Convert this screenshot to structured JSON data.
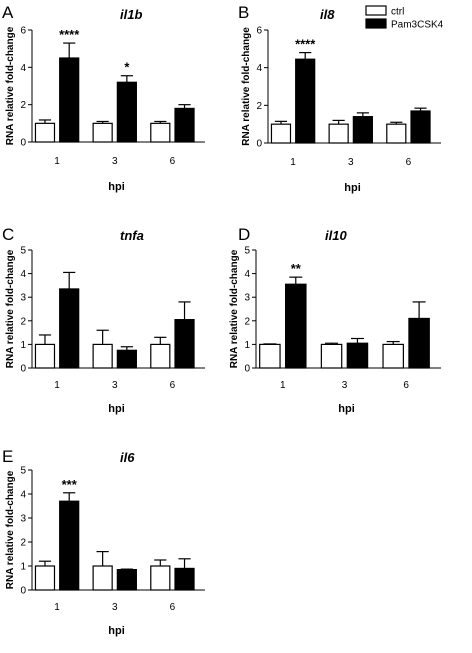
{
  "legend": {
    "entries": [
      {
        "label": "ctrl",
        "color": "#ffffff"
      },
      {
        "label": "Pam3CSK4",
        "color": "#000000"
      }
    ]
  },
  "chart_data": [
    {
      "type": "bar",
      "panel": "A",
      "title": "il1b",
      "xlabel": "hpi",
      "ylabel": "RNA relative fold-change",
      "categories": [
        "1",
        "3",
        "6"
      ],
      "ylim": [
        0,
        6
      ],
      "yticks": [
        0,
        2,
        4,
        6
      ],
      "series": [
        {
          "name": "ctrl",
          "values": [
            1.0,
            1.0,
            1.0
          ],
          "errors": [
            0.18,
            0.1,
            0.1
          ]
        },
        {
          "name": "Pam3CSK4",
          "values": [
            4.5,
            3.2,
            1.8
          ],
          "errors": [
            0.8,
            0.35,
            0.2
          ]
        }
      ],
      "annotations": [
        "****",
        "*",
        ""
      ]
    },
    {
      "type": "bar",
      "panel": "B",
      "title": "il8",
      "xlabel": "hpi",
      "ylabel": "RNA relative fold-change",
      "categories": [
        "1",
        "3",
        "6"
      ],
      "ylim": [
        0,
        6
      ],
      "yticks": [
        0,
        2,
        4,
        6
      ],
      "series": [
        {
          "name": "ctrl",
          "values": [
            1.0,
            1.0,
            1.0
          ],
          "errors": [
            0.15,
            0.2,
            0.1
          ]
        },
        {
          "name": "Pam3CSK4",
          "values": [
            4.45,
            1.4,
            1.7
          ],
          "errors": [
            0.35,
            0.2,
            0.15
          ]
        }
      ],
      "annotations": [
        "****",
        "",
        ""
      ]
    },
    {
      "type": "bar",
      "panel": "C",
      "title": "tnfa",
      "xlabel": "hpi",
      "ylabel": "RNA relative fold-change",
      "categories": [
        "1",
        "3",
        "6"
      ],
      "ylim": [
        0,
        5
      ],
      "yticks": [
        0,
        1,
        2,
        3,
        4,
        5
      ],
      "series": [
        {
          "name": "ctrl",
          "values": [
            1.0,
            1.0,
            1.0
          ],
          "errors": [
            0.4,
            0.6,
            0.3
          ]
        },
        {
          "name": "Pam3CSK4",
          "values": [
            3.35,
            0.75,
            2.05
          ],
          "errors": [
            0.7,
            0.15,
            0.75
          ]
        }
      ],
      "annotations": [
        "",
        "",
        ""
      ]
    },
    {
      "type": "bar",
      "panel": "D",
      "title": "il10",
      "xlabel": "hpi",
      "ylabel": "RNA relative fold-change",
      "categories": [
        "1",
        "3",
        "6"
      ],
      "ylim": [
        0,
        5
      ],
      "yticks": [
        0,
        1,
        2,
        3,
        4,
        5
      ],
      "series": [
        {
          "name": "ctrl",
          "values": [
            1.0,
            1.0,
            1.0
          ],
          "errors": [
            0.02,
            0.05,
            0.12
          ]
        },
        {
          "name": "Pam3CSK4",
          "values": [
            3.55,
            1.05,
            2.1
          ],
          "errors": [
            0.3,
            0.2,
            0.7
          ]
        }
      ],
      "annotations": [
        "**",
        "",
        ""
      ]
    },
    {
      "type": "bar",
      "panel": "E",
      "title": "il6",
      "xlabel": "hpi",
      "ylabel": "RNA relative fold-change",
      "categories": [
        "1",
        "3",
        "6"
      ],
      "ylim": [
        0,
        5
      ],
      "yticks": [
        0,
        1,
        2,
        3,
        4,
        5
      ],
      "series": [
        {
          "name": "ctrl",
          "values": [
            1.0,
            1.0,
            1.0
          ],
          "errors": [
            0.2,
            0.6,
            0.25
          ]
        },
        {
          "name": "Pam3CSK4",
          "values": [
            3.7,
            0.85,
            0.9
          ],
          "errors": [
            0.35,
            0.02,
            0.4
          ]
        }
      ],
      "annotations": [
        "***",
        "",
        ""
      ]
    }
  ]
}
